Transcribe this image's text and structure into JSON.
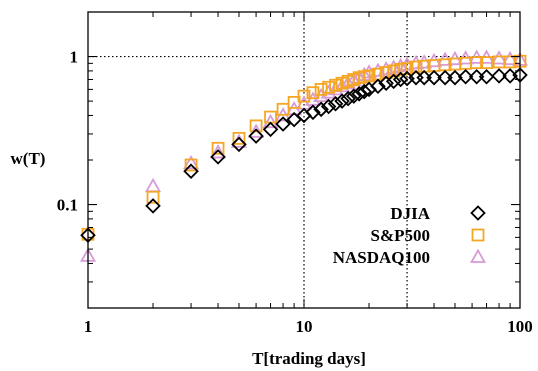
{
  "chart_data": {
    "type": "scatter",
    "title": "",
    "xlabel": "T[trading days]",
    "ylabel": "w(T)",
    "xscale": "log",
    "yscale": "log",
    "xlim": [
      1,
      100
    ],
    "ylim": [
      0.02,
      2
    ],
    "xticks": [
      {
        "value": 1,
        "label": "1"
      },
      {
        "value": 10,
        "label": "10"
      },
      {
        "value": 100,
        "label": "100"
      }
    ],
    "yticks": [
      {
        "value": 0.1,
        "label": "0.1"
      },
      {
        "value": 1,
        "label": "1"
      }
    ],
    "reference_lines": {
      "horizontal": [
        1
      ],
      "vertical": [
        10,
        30
      ],
      "style": "dotted"
    },
    "grid": false,
    "legend": {
      "placement": "bottom-right"
    },
    "series": [
      {
        "name": "DJIA",
        "marker": "diamond",
        "color": "#000000",
        "x": [
          1,
          2,
          3,
          4,
          5,
          6,
          7,
          8,
          9,
          10,
          11,
          12,
          13,
          14,
          15,
          16,
          17,
          18,
          19,
          20,
          22,
          24,
          26,
          28,
          30,
          33,
          36,
          40,
          45,
          50,
          56,
          63,
          70,
          80,
          90,
          100
        ],
        "y": [
          0.062,
          0.098,
          0.168,
          0.21,
          0.255,
          0.29,
          0.322,
          0.35,
          0.375,
          0.4,
          0.42,
          0.44,
          0.46,
          0.48,
          0.5,
          0.52,
          0.54,
          0.56,
          0.58,
          0.6,
          0.63,
          0.66,
          0.68,
          0.7,
          0.71,
          0.72,
          0.72,
          0.72,
          0.72,
          0.72,
          0.73,
          0.73,
          0.73,
          0.74,
          0.74,
          0.75
        ]
      },
      {
        "name": "S&P500",
        "marker": "square",
        "color": "#f5a623",
        "x": [
          1,
          2,
          3,
          4,
          5,
          6,
          7,
          8,
          9,
          10,
          11,
          12,
          13,
          14,
          15,
          16,
          17,
          18,
          19,
          20,
          22,
          24,
          26,
          28,
          30,
          33,
          36,
          40,
          45,
          50,
          56,
          63,
          70,
          80,
          90,
          100
        ],
        "y": [
          0.063,
          0.112,
          0.185,
          0.24,
          0.28,
          0.34,
          0.39,
          0.44,
          0.49,
          0.54,
          0.57,
          0.6,
          0.62,
          0.64,
          0.66,
          0.68,
          0.7,
          0.72,
          0.73,
          0.74,
          0.76,
          0.78,
          0.8,
          0.82,
          0.83,
          0.85,
          0.86,
          0.87,
          0.88,
          0.89,
          0.9,
          0.91,
          0.91,
          0.92,
          0.92,
          0.93
        ]
      },
      {
        "name": "NASDAQ100",
        "marker": "triangle",
        "color": "#d89bd8",
        "x": [
          1,
          2,
          3,
          4,
          5,
          6,
          7,
          8,
          9,
          10,
          11,
          12,
          13,
          14,
          15,
          16,
          17,
          18,
          19,
          20,
          22,
          24,
          26,
          28,
          30,
          33,
          36,
          40,
          45,
          50,
          56,
          63,
          70,
          80,
          90,
          100
        ],
        "y": [
          0.045,
          0.133,
          0.19,
          0.225,
          0.265,
          0.31,
          0.36,
          0.4,
          0.44,
          0.48,
          0.51,
          0.54,
          0.57,
          0.6,
          0.63,
          0.66,
          0.69,
          0.72,
          0.75,
          0.78,
          0.8,
          0.82,
          0.84,
          0.86,
          0.88,
          0.9,
          0.91,
          0.93,
          0.95,
          0.96,
          0.97,
          0.98,
          0.98,
          0.97,
          0.96,
          0.95
        ]
      }
    ]
  }
}
